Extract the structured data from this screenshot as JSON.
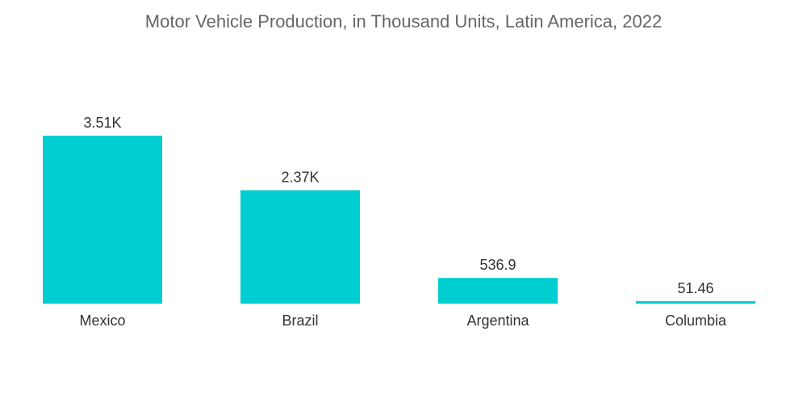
{
  "chart_data": {
    "type": "bar",
    "title": "Motor Vehicle Production, in Thousand Units, Latin America, 2022",
    "categories": [
      "Mexico",
      "Brazil",
      "Argentina",
      "Columbia"
    ],
    "values": [
      3510,
      2370,
      536.9,
      51.46
    ],
    "data_labels": [
      "3.51K",
      "2.37K",
      "536.9",
      "51.46"
    ],
    "xlabel": "",
    "ylabel": "",
    "ylim": [
      0,
      3510
    ],
    "grid": false,
    "legend": "none",
    "bar_color": "#00CED1"
  }
}
